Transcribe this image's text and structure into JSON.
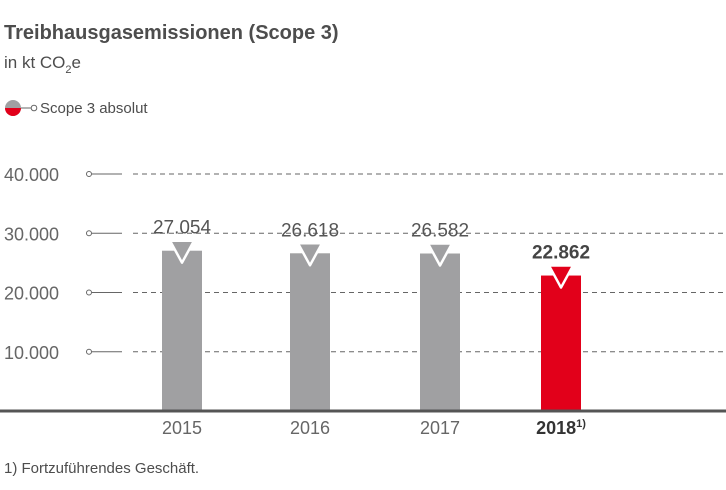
{
  "chart_data": {
    "type": "bar",
    "title": "Treibhausgasemissionen (Scope 3)",
    "subtitle": {
      "prefix": "in kt CO",
      "sub": "2",
      "suffix": "e"
    },
    "legend": [
      {
        "name": "Scope 3 absolut",
        "colors": [
          "#a0a0a2",
          "#e2001a"
        ]
      }
    ],
    "categories": [
      "2015",
      "2016",
      "2017",
      "2018"
    ],
    "category_notes": [
      "",
      "",
      "",
      "1)"
    ],
    "highlight_index": 3,
    "series": [
      {
        "name": "Scope 3 absolut",
        "values": [
          27054,
          26618,
          26582,
          22862
        ]
      }
    ],
    "value_labels": [
      "27.054",
      "26.618",
      "26.582",
      "22.862"
    ],
    "colors": {
      "bar": "#a0a0a2",
      "highlight": "#e2001a",
      "grid": "#666666",
      "baseline": "#555555"
    },
    "yticks": [
      10000,
      20000,
      30000,
      40000
    ],
    "ytick_labels": [
      "10.000",
      "20.000",
      "30.000",
      "40.000"
    ],
    "ylim": [
      0,
      40000
    ],
    "grid": true,
    "legend_position": "top-left",
    "footnote": "1) Fortzuführendes Geschäft."
  }
}
